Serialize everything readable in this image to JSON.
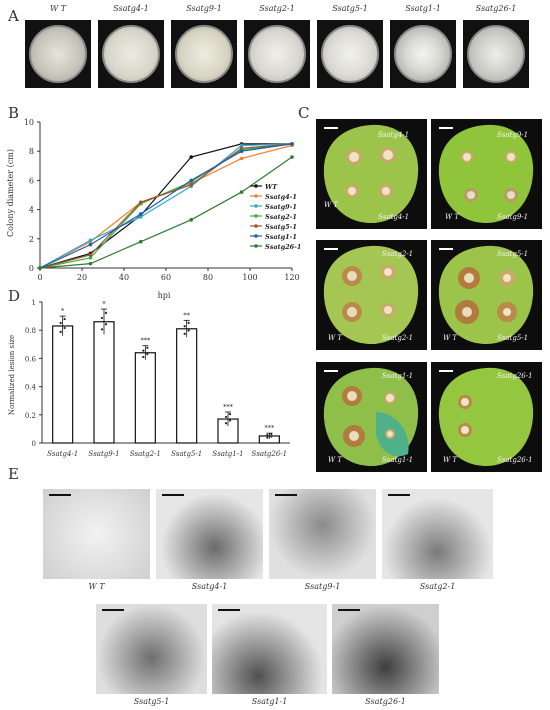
{
  "panels": {
    "A": "A",
    "B": "B",
    "C": "C",
    "D": "D",
    "E": "E"
  },
  "panel_a": {
    "plates": [
      "W T",
      "Ssatg4-1",
      "Ssatg9-1",
      "Ssatg2-1",
      "Ssatg5-1",
      "Ssatg1-1",
      "Ssatg26-1"
    ]
  },
  "panel_c": {
    "leaves": [
      {
        "mutant": "Ssatg4-1",
        "wt": "W T"
      },
      {
        "mutant": "Ssatg9-1",
        "wt": "W T"
      },
      {
        "mutant": "Ssatg2-1",
        "wt": "W T"
      },
      {
        "mutant": "Ssatg5-1",
        "wt": "W T"
      },
      {
        "mutant": "Ssatg1-1",
        "wt": "W T"
      },
      {
        "mutant": "Ssatg26-1",
        "wt": "W T"
      }
    ]
  },
  "panel_e": {
    "images": [
      "W T",
      "Ssatg4-1",
      "Ssatg9-1",
      "Ssatg2-1",
      "Ssatg5-1",
      "Ssatg1-1",
      "Ssatg26-1"
    ]
  },
  "chart_data": [
    {
      "type": "line",
      "ylabel": "Colony diameter (cm)",
      "xlabel": "hpi",
      "x": [
        0,
        24,
        48,
        72,
        96,
        120
      ],
      "xticks": [
        "0",
        "20",
        "40",
        "60",
        "80",
        "100",
        "120"
      ],
      "yticks": [
        "0",
        "2",
        "4",
        "6",
        "8",
        "10"
      ],
      "xlim": [
        0,
        120
      ],
      "ylim": [
        0,
        10
      ],
      "legend_position": "right",
      "series": [
        {
          "name": "WT",
          "color": "#111111",
          "values": [
            0,
            1.0,
            3.6,
            7.6,
            8.5,
            8.5
          ]
        },
        {
          "name": "Ssatg4-1",
          "color": "#f08030",
          "values": [
            0,
            1.8,
            4.5,
            5.8,
            7.5,
            8.4
          ]
        },
        {
          "name": "Ssatg9-1",
          "color": "#2fa8c8",
          "values": [
            0,
            1.9,
            3.5,
            5.6,
            8.4,
            8.5
          ]
        },
        {
          "name": "Ssatg2-1",
          "color": "#3cb043",
          "values": [
            0,
            0.7,
            4.4,
            5.9,
            8.1,
            8.5
          ]
        },
        {
          "name": "Ssatg5-1",
          "color": "#a0522d",
          "values": [
            0,
            0.9,
            4.5,
            5.7,
            8.2,
            8.5
          ]
        },
        {
          "name": "Ssatg1-1",
          "color": "#1f5fa8",
          "values": [
            0,
            1.6,
            3.7,
            6.0,
            8.0,
            8.5
          ]
        },
        {
          "name": "Ssatg26-1",
          "color": "#2e7d32",
          "values": [
            0,
            0.3,
            1.8,
            3.3,
            5.2,
            7.6
          ]
        }
      ]
    },
    {
      "type": "bar",
      "ylabel": "Normalized lesion size",
      "categories": [
        "Ssatg4-1",
        "Ssatg9-1",
        "Ssatg2-1",
        "Ssatg5-1",
        "Ssatg1-1",
        "Ssatg26-1"
      ],
      "values": [
        0.83,
        0.86,
        0.64,
        0.81,
        0.17,
        0.05
      ],
      "errors": [
        0.07,
        0.09,
        0.05,
        0.06,
        0.05,
        0.02
      ],
      "significance": [
        "*",
        "*",
        "***",
        "**",
        "***",
        "***"
      ],
      "yticks": [
        "0",
        "0.2",
        "0.4",
        "0.6",
        "0.8",
        "1"
      ],
      "ylim": [
        0,
        1
      ]
    }
  ]
}
